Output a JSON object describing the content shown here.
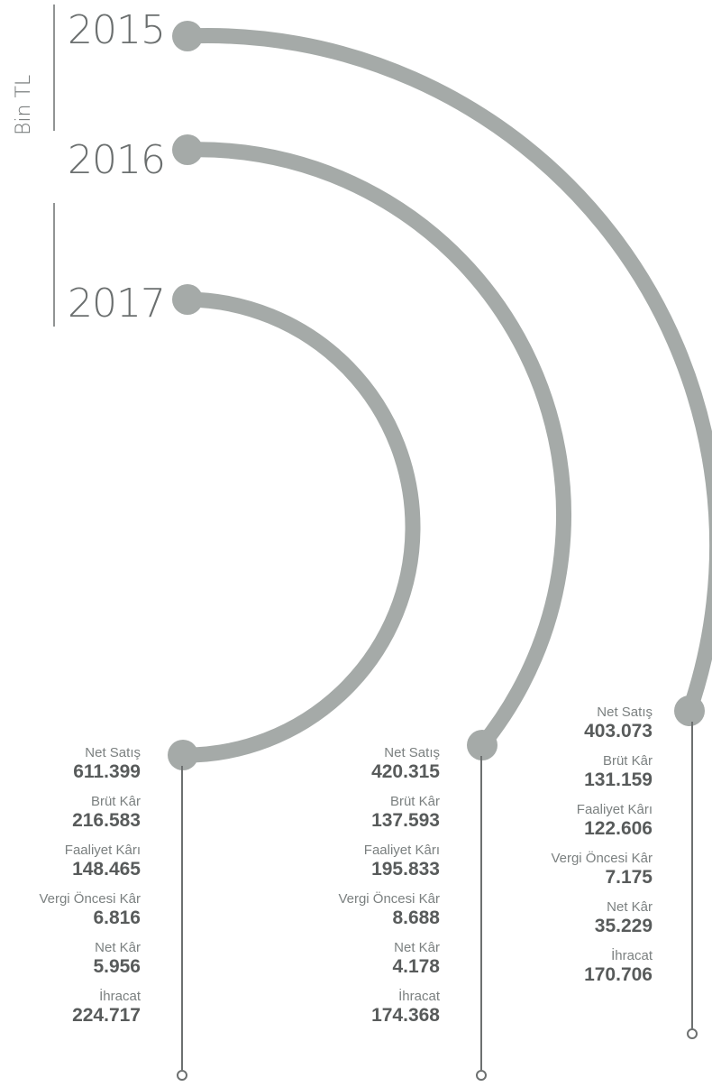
{
  "unit": "Bin TL",
  "metric_labels": [
    "Net Satış",
    "Brüt Kâr",
    "Faaliyet Kârı",
    "Vergi Öncesi Kâr",
    "Net Kâr",
    "İhracat"
  ],
  "years": [
    {
      "year": "2015",
      "values": [
        "403.073",
        "131.159",
        "122.606",
        "7.175",
        "35.229",
        "170.706"
      ]
    },
    {
      "year": "2016",
      "values": [
        "420.315",
        "137.593",
        "195.833",
        "8.688",
        "4.178",
        "174.368"
      ]
    },
    {
      "year": "2017",
      "values": [
        "611.399",
        "216.583",
        "148.465",
        "6.816",
        "5.956",
        "224.717"
      ]
    }
  ],
  "colors": {
    "arc": "#a5aaa8",
    "line": "#6d7070",
    "text": "#585b5b"
  }
}
